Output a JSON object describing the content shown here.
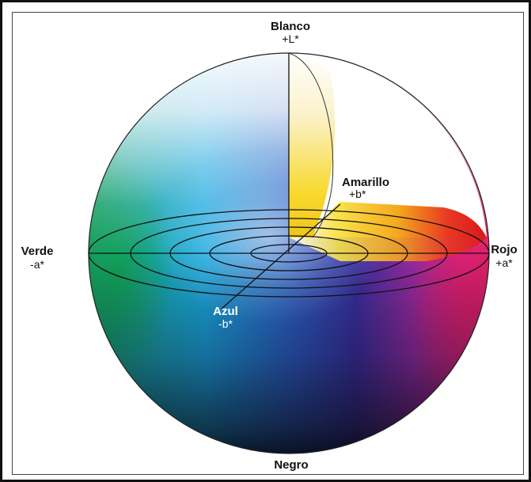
{
  "diagram": {
    "labels": {
      "top_name": "Blanco",
      "top_axis": "+L*",
      "yellow_name": "Amarillo",
      "yellow_axis": "+b*",
      "left_name": "Verde",
      "left_axis": "-a*",
      "right_name": "Rojo",
      "right_axis": "+a*",
      "blue_name": "Azul",
      "blue_axis": "-b*",
      "bottom_name": "Negro"
    },
    "colors": {
      "frame": "#111111",
      "outline": "#222222",
      "label_dark": "#111111",
      "label_light": "#ffffff",
      "green": "#1a9a5a",
      "cyan": "#1aa8e0",
      "blue": "#1f3fa8",
      "magenta": "#d0267a",
      "red": "#e02020",
      "yellow": "#f6d21a",
      "black": "#1a1a22"
    }
  }
}
